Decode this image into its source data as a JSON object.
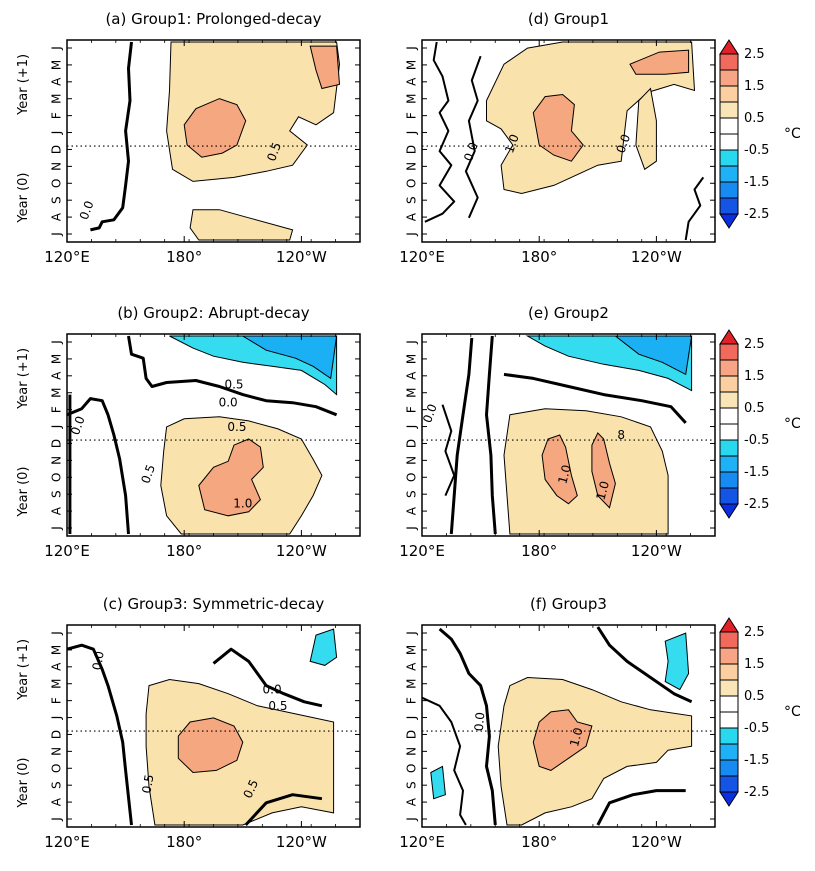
{
  "chart_data": [
    {
      "type": "heatmap",
      "title": "(a) Group1: Prolonged-decay",
      "x_ticks": [
        "120°E",
        "180°",
        "120°W"
      ],
      "y_ticks": [
        "J",
        "A",
        "S",
        "O",
        "N",
        "D",
        "J",
        "F",
        "M",
        "A",
        "M",
        "J"
      ],
      "y_periods": [
        "Year (0)",
        "Year (+1)"
      ],
      "contour_labels": [
        "0.0",
        "0.5"
      ],
      "colorbar": false
    },
    {
      "type": "heatmap",
      "title": "(b) Group2: Abrupt-decay",
      "x_ticks": [
        "120°E",
        "180°",
        "120°W"
      ],
      "y_ticks": [
        "J",
        "A",
        "S",
        "O",
        "N",
        "D",
        "J",
        "F",
        "M",
        "A",
        "M",
        "J"
      ],
      "y_periods": [
        "Year (0)",
        "Year (+1)"
      ],
      "contour_labels": [
        "0.5",
        "0.0",
        "0.0",
        "0.5",
        "0.5",
        "1.0"
      ],
      "colorbar": false
    },
    {
      "type": "heatmap",
      "title": "(c) Group3: Symmetric-decay",
      "x_ticks": [
        "120°E",
        "180°",
        "120°W"
      ],
      "y_ticks": [
        "J",
        "A",
        "S",
        "O",
        "N",
        "D",
        "J",
        "F",
        "M",
        "A",
        "M",
        "J"
      ],
      "y_periods": [
        "Year (0)",
        "Year (+1)"
      ],
      "contour_labels": [
        "0.0",
        "0.0",
        "0.5",
        "0.5",
        "0.5"
      ],
      "colorbar": false
    },
    {
      "type": "heatmap",
      "title": "(d) Group1",
      "x_ticks": [
        "120°E",
        "180°",
        "120°W"
      ],
      "y_ticks": [
        "J",
        "A",
        "S",
        "O",
        "N",
        "D",
        "J",
        "F",
        "M",
        "A",
        "M",
        "J"
      ],
      "contour_labels": [
        "0.0",
        "1.0",
        "0.0"
      ],
      "colorbar": true
    },
    {
      "type": "heatmap",
      "title": "(e) Group2",
      "x_ticks": [
        "120°E",
        "180°",
        "120°W"
      ],
      "y_ticks": [
        "J",
        "A",
        "S",
        "O",
        "N",
        "D",
        "J",
        "F",
        "M",
        "A",
        "M",
        "J"
      ],
      "contour_labels": [
        "0.0",
        "1.0",
        "1.0",
        "8"
      ],
      "colorbar": true
    },
    {
      "type": "heatmap",
      "title": "(f) Group3",
      "x_ticks": [
        "120°E",
        "180°",
        "120°W"
      ],
      "y_ticks": [
        "J",
        "A",
        "S",
        "O",
        "N",
        "D",
        "J",
        "F",
        "M",
        "A",
        "M",
        "J"
      ],
      "contour_labels": [
        "0.0",
        "1.0"
      ],
      "colorbar": true
    }
  ],
  "colorbar": {
    "labels": [
      "2.5",
      "1.5",
      "0.5",
      "-0.5",
      "-1.5",
      "-2.5"
    ],
    "unit": "°C",
    "colors": [
      "#e0202a",
      "#f26a5c",
      "#f7a585",
      "#fbcfa0",
      "#fae5b6",
      "#ffffff",
      "#ffffff",
      "#28d8ee",
      "#1fb1f5",
      "#168cf2",
      "#1455e6",
      "#0b2ee0"
    ]
  },
  "colors": {
    "tan": "#fae2ad",
    "orange": "#f5a77f",
    "cyan": "#35dcf0",
    "blue": "#1ab0f3"
  }
}
